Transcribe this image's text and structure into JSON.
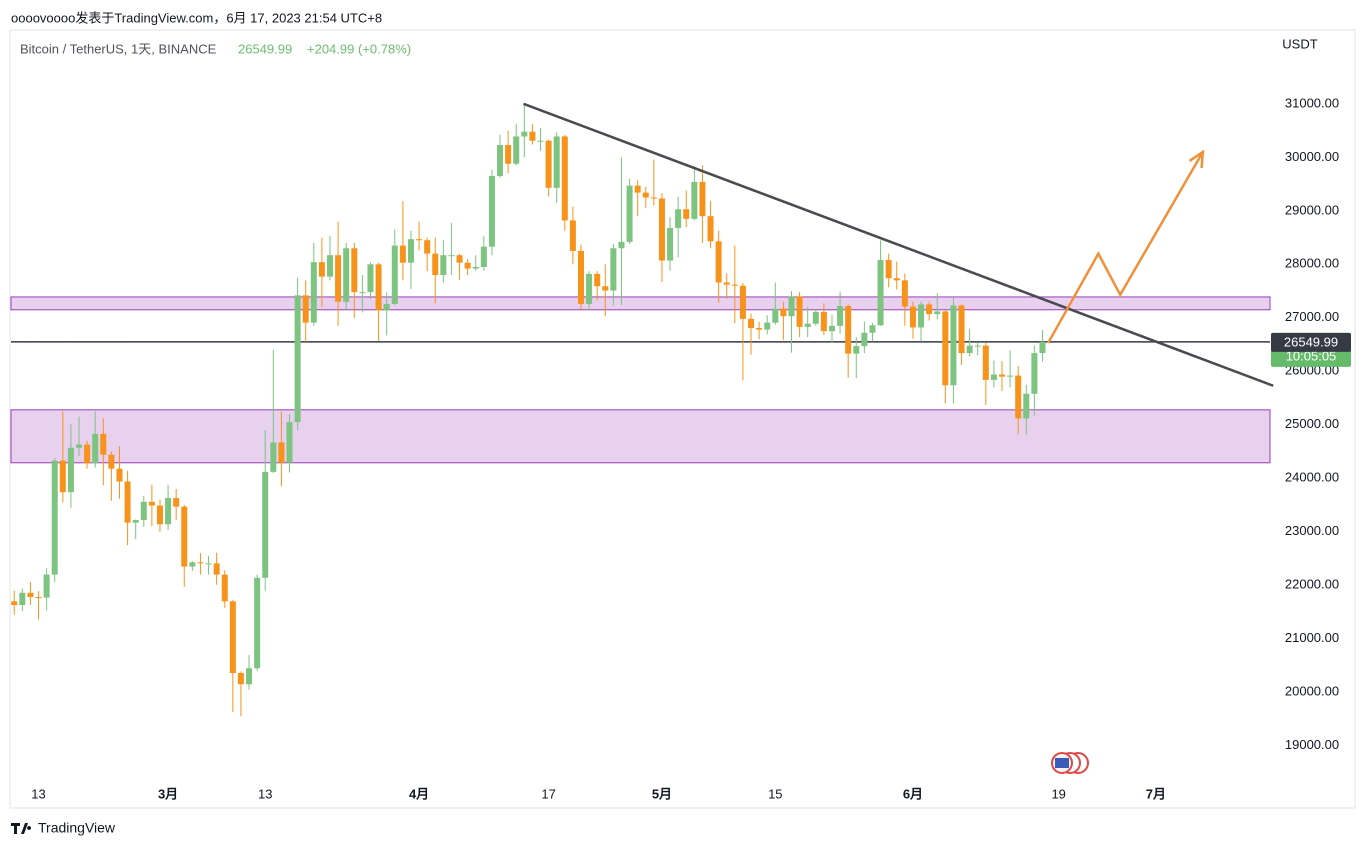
{
  "header": {
    "author_line": "oooovoooo发表于TradingView.com，6月 17, 2023 21:54 UTC+8",
    "footer": "TradingView"
  },
  "chart_data": {
    "type": "candlestick",
    "title": "Bitcoin / TetherUS, 1天, BINANCE",
    "last_change": "+204.99 (+0.78%)",
    "currency": "USDT",
    "countdown": "10:05:05",
    "last_price": 26549.99,
    "support_line": 26549.99,
    "x": [
      0,
      1,
      2,
      3,
      4,
      5,
      6,
      7,
      8,
      9,
      10,
      11,
      12,
      13,
      14,
      15,
      16,
      17,
      18,
      19,
      20,
      21,
      22,
      23,
      24,
      25,
      26,
      27,
      28,
      29,
      30,
      31,
      32,
      33,
      34,
      35,
      36,
      37,
      38,
      39,
      40,
      41,
      42,
      43,
      44,
      45,
      46,
      47,
      48,
      49,
      50,
      51,
      52,
      53,
      54,
      55,
      56,
      57,
      58,
      59,
      60,
      61,
      62,
      63,
      64,
      65,
      66,
      67,
      68,
      69,
      70,
      71,
      72,
      73,
      74,
      75,
      76,
      77,
      78,
      79,
      80,
      81,
      82,
      83,
      84,
      85,
      86,
      87,
      88,
      89,
      90,
      91,
      92,
      93,
      94,
      95,
      96,
      97,
      98,
      99,
      100,
      101,
      102,
      103,
      104,
      105,
      106,
      107,
      108,
      109,
      110,
      111,
      112,
      113,
      114,
      115,
      116,
      117,
      118,
      119,
      120,
      121,
      122,
      123,
      124,
      125,
      126,
      127
    ],
    "open": [
      21700,
      21630,
      21860,
      21780,
      21770,
      22200,
      24330,
      23740,
      24570,
      24630,
      24280,
      24830,
      24440,
      24180,
      23940,
      23170,
      23220,
      23560,
      23490,
      23140,
      23630,
      23470,
      22350,
      22430,
      22410,
      22410,
      22200,
      21700,
      20360,
      20150,
      20450,
      22140,
      24120,
      24670,
      24290,
      25050,
      27420,
      26910,
      28040,
      27770,
      28170,
      27300,
      28300,
      27480,
      27480,
      28000,
      27140,
      27260,
      28350,
      28030,
      28470,
      28450,
      28200,
      27800,
      28170,
      28170,
      28030,
      27920,
      27950,
      28330,
      29650,
      30230,
      29880,
      30390,
      30480,
      30310,
      30310,
      29430,
      30390,
      28820,
      28250,
      27260,
      27820,
      27590,
      27510,
      28300,
      28420,
      29470,
      29340,
      29250,
      29230,
      28070,
      28680,
      29030,
      28850,
      29540,
      28900,
      28430,
      27660,
      27620,
      27600,
      26980,
      26810,
      26780,
      26910,
      27170,
      27030,
      27400,
      26830,
      26890,
      27110,
      26750,
      26850,
      27220,
      26330,
      26470,
      26720,
      26860,
      28080,
      27740,
      27700,
      27210,
      26820,
      27250,
      27070,
      27120,
      25740,
      27230,
      26340,
      26480,
      26480,
      25840,
      25940,
      25900,
      25920,
      25120,
      25580,
      26340
    ],
    "high": [
      21900,
      21940,
      22060,
      21890,
      22320,
      24380,
      25250,
      25010,
      25150,
      24700,
      25250,
      25120,
      24500,
      24600,
      24140,
      23230,
      23670,
      23880,
      23600,
      23880,
      23800,
      23500,
      22450,
      22600,
      22550,
      22610,
      22280,
      21730,
      20390,
      20700,
      22200,
      24900,
      26400,
      25250,
      25200,
      27750,
      27700,
      28400,
      28500,
      28530,
      28800,
      28400,
      28400,
      27800,
      28040,
      28030,
      27480,
      28650,
      29180,
      28630,
      28800,
      28500,
      28500,
      28450,
      28770,
      28200,
      28100,
      28170,
      28530,
      29770,
      30420,
      30500,
      30620,
      31000,
      30620,
      30550,
      30330,
      30470,
      30420,
      29080,
      28370,
      27870,
      27870,
      28000,
      28380,
      30000,
      29600,
      29570,
      29450,
      29960,
      29330,
      28880,
      29260,
      29380,
      29840,
      29850,
      29180,
      28630,
      27830,
      28350,
      27650,
      27080,
      26930,
      27050,
      27660,
      27300,
      27500,
      27480,
      27200,
      27160,
      27270,
      27050,
      27490,
      27250,
      26640,
      26930,
      26900,
      28450,
      28200,
      28050,
      27830,
      27300,
      27300,
      27300,
      27460,
      27140,
      27370,
      27250,
      26790,
      26530,
      26530,
      26200,
      26190,
      26390,
      26100,
      25750,
      26480,
      26770
    ],
    "low": [
      21450,
      21520,
      21630,
      21360,
      21530,
      22060,
      23550,
      23450,
      24420,
      24180,
      24200,
      23870,
      23580,
      23620,
      22750,
      22860,
      23090,
      23110,
      23000,
      23030,
      23220,
      21970,
      22270,
      22200,
      22200,
      22010,
      21580,
      19630,
      19550,
      20050,
      20400,
      21900,
      24100,
      23850,
      24110,
      24900,
      26550,
      26850,
      27200,
      27700,
      26850,
      27150,
      27000,
      27100,
      27350,
      26570,
      26670,
      27240,
      27700,
      27540,
      28260,
      27870,
      27270,
      27660,
      27800,
      27710,
      27800,
      27880,
      27880,
      28170,
      29620,
      29700,
      29850,
      30000,
      30240,
      30120,
      29270,
      29150,
      28630,
      28000,
      27150,
      27140,
      27320,
      27030,
      27230,
      27240,
      28380,
      28900,
      29050,
      29100,
      27670,
      27880,
      28130,
      28700,
      28820,
      28400,
      28300,
      27280,
      27350,
      26900,
      25830,
      26310,
      26600,
      26690,
      26870,
      26590,
      26350,
      26640,
      26640,
      26850,
      26680,
      26530,
      26700,
      25880,
      25870,
      26340,
      26560,
      26850,
      27570,
      27530,
      26850,
      26610,
      26560,
      26950,
      26970,
      25400,
      25400,
      26120,
      26280,
      26300,
      25370,
      25700,
      25630,
      25700,
      24820,
      24820,
      25170,
      26180
    ],
    "close": [
      21630,
      21860,
      21780,
      21770,
      22200,
      24330,
      23740,
      24570,
      24630,
      24280,
      24830,
      24440,
      24180,
      23940,
      23170,
      23220,
      23560,
      23490,
      23140,
      23630,
      23470,
      22350,
      22430,
      22410,
      22410,
      22200,
      21700,
      20360,
      20150,
      20450,
      22140,
      24120,
      24670,
      24290,
      25050,
      27420,
      26910,
      28040,
      27770,
      28170,
      27300,
      28300,
      27480,
      27480,
      28000,
      27140,
      27260,
      28350,
      28030,
      28470,
      28450,
      28200,
      27800,
      28170,
      28170,
      28030,
      27920,
      27950,
      28330,
      29650,
      30230,
      29880,
      30390,
      30480,
      30310,
      30310,
      29430,
      30390,
      28820,
      28250,
      27260,
      27820,
      27590,
      27510,
      28300,
      28420,
      29470,
      29340,
      29250,
      29230,
      28070,
      28680,
      29030,
      28850,
      29540,
      28900,
      28430,
      27660,
      27620,
      27600,
      26980,
      26810,
      26780,
      26910,
      27170,
      27030,
      27400,
      26830,
      26890,
      27110,
      26750,
      26850,
      27220,
      26330,
      26470,
      26720,
      26860,
      28080,
      27740,
      27700,
      27210,
      26820,
      27250,
      27070,
      27120,
      25740,
      27230,
      26340,
      26480,
      26480,
      25840,
      25940,
      25900,
      25920,
      25120,
      25580,
      26340,
      26549.99
    ],
    "up_color": "#7cc47f",
    "down_color": "#f7931a",
    "zones": [
      {
        "low": 27150,
        "high": 27390
      },
      {
        "low": 24290,
        "high": 25280
      }
    ],
    "trendline": {
      "x": [
        62.9,
        155.5
      ],
      "values": [
        31000,
        25730
      ]
    },
    "projection": {
      "x": [
        127.7,
        133.9,
        136.6,
        146.8
      ],
      "values": [
        26530,
        28200,
        27430,
        30100
      ]
    },
    "xlim": [
      -0.4,
      155.1
    ],
    "xticks": [
      {
        "value": 3,
        "label": "13"
      },
      {
        "value": 19,
        "label": "3月"
      },
      {
        "value": 31,
        "label": "13"
      },
      {
        "value": 50,
        "label": "4月"
      },
      {
        "value": 66,
        "label": "17"
      },
      {
        "value": 80,
        "label": "5月"
      },
      {
        "value": 94,
        "label": "15"
      },
      {
        "value": 111,
        "label": "6月"
      },
      {
        "value": 129,
        "label": "19"
      },
      {
        "value": 141,
        "label": "7月"
      }
    ],
    "ylim": [
      18360,
      32380
    ],
    "yticks": [
      {
        "value": 19000,
        "label": "19000.00"
      },
      {
        "value": 20000,
        "label": "20000.00"
      },
      {
        "value": 21000,
        "label": "21000.00"
      },
      {
        "value": 22000,
        "label": "22000.00"
      },
      {
        "value": 23000,
        "label": "23000.00"
      },
      {
        "value": 24000,
        "label": "24000.00"
      },
      {
        "value": 25000,
        "label": "25000.00"
      },
      {
        "value": 26000,
        "label": "26000.00"
      },
      {
        "value": 27000,
        "label": "27000.00"
      },
      {
        "value": 28000,
        "label": "28000.00"
      },
      {
        "value": 29000,
        "label": "29000.00"
      },
      {
        "value": 30000,
        "label": "30000.00"
      },
      {
        "value": 31000,
        "label": "31000.00"
      }
    ]
  }
}
